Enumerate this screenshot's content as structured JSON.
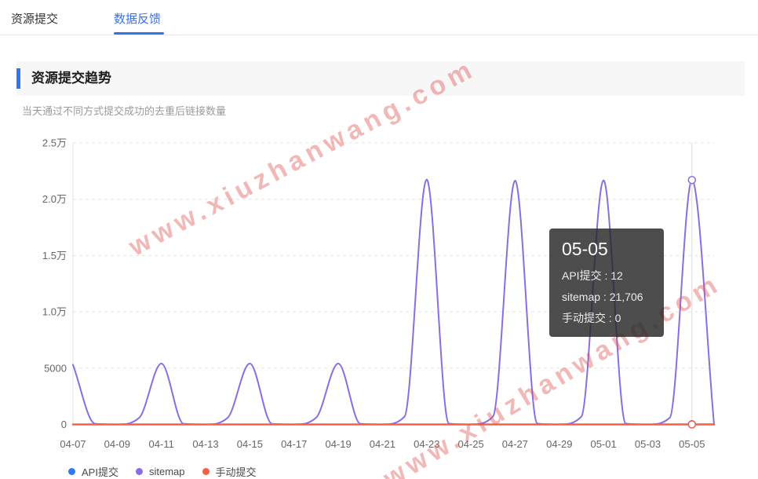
{
  "tabs": [
    {
      "label": "资源提交",
      "active": false
    },
    {
      "label": "数据反馈",
      "active": true
    }
  ],
  "section": {
    "title": "资源提交趋势",
    "subtitle": "当天通过不同方式提交成功的去重后链接数量"
  },
  "watermark": {
    "text": "www.xiuzhanwang.com",
    "color": "#e15353"
  },
  "tooltip": {
    "title": "05-05",
    "separator": " : ",
    "rows": [
      {
        "label": "API提交",
        "value": "12"
      },
      {
        "label": "sitemap",
        "value": "21,706"
      },
      {
        "label": "手动提交",
        "value": "0"
      }
    ]
  },
  "legend": [
    {
      "label": "API提交",
      "color": "#2f7bf5"
    },
    {
      "label": "sitemap",
      "color": "#8a6de4"
    },
    {
      "label": "手动提交",
      "color": "#f4604a"
    }
  ],
  "chart_data": {
    "type": "line",
    "smooth": true,
    "title": "资源提交趋势",
    "grid": "horizontal-dashed",
    "legend_position": "bottom-left",
    "ylim": [
      0,
      25000
    ],
    "y_ticks": [
      {
        "value": 0,
        "label": "0"
      },
      {
        "value": 5000,
        "label": "5000"
      },
      {
        "value": 10000,
        "label": "1.0万"
      },
      {
        "value": 15000,
        "label": "1.5万"
      },
      {
        "value": 20000,
        "label": "2.0万"
      },
      {
        "value": 25000,
        "label": "2.5万"
      }
    ],
    "x": [
      "04-07",
      "04-08",
      "04-09",
      "04-10",
      "04-11",
      "04-12",
      "04-13",
      "04-14",
      "04-15",
      "04-16",
      "04-17",
      "04-18",
      "04-19",
      "04-20",
      "04-21",
      "04-22",
      "04-23",
      "04-24",
      "04-25",
      "04-26",
      "04-27",
      "04-28",
      "04-29",
      "04-30",
      "05-01",
      "05-02",
      "05-03",
      "05-04",
      "05-05",
      "05-06"
    ],
    "x_label_every": 2,
    "hover_index": 28,
    "series": [
      {
        "name": "API提交",
        "color": "#2f7bf5",
        "values": [
          0,
          0,
          0,
          0,
          0,
          0,
          0,
          0,
          0,
          0,
          0,
          0,
          0,
          0,
          0,
          0,
          0,
          0,
          0,
          0,
          0,
          0,
          0,
          0,
          0,
          0,
          0,
          0,
          12,
          0
        ]
      },
      {
        "name": "sitemap",
        "color": "#8a6de4",
        "values": [
          5300,
          60,
          0,
          600,
          5400,
          60,
          0,
          600,
          5400,
          60,
          0,
          600,
          5400,
          60,
          0,
          700,
          21750,
          80,
          0,
          700,
          21650,
          80,
          0,
          700,
          21680,
          80,
          0,
          600,
          21706,
          0
        ]
      },
      {
        "name": "手动提交",
        "color": "#f4604a",
        "values": [
          0,
          0,
          0,
          0,
          0,
          0,
          0,
          0,
          0,
          0,
          0,
          0,
          0,
          0,
          0,
          0,
          0,
          0,
          0,
          0,
          0,
          0,
          0,
          0,
          0,
          0,
          0,
          0,
          0,
          0
        ]
      }
    ]
  }
}
